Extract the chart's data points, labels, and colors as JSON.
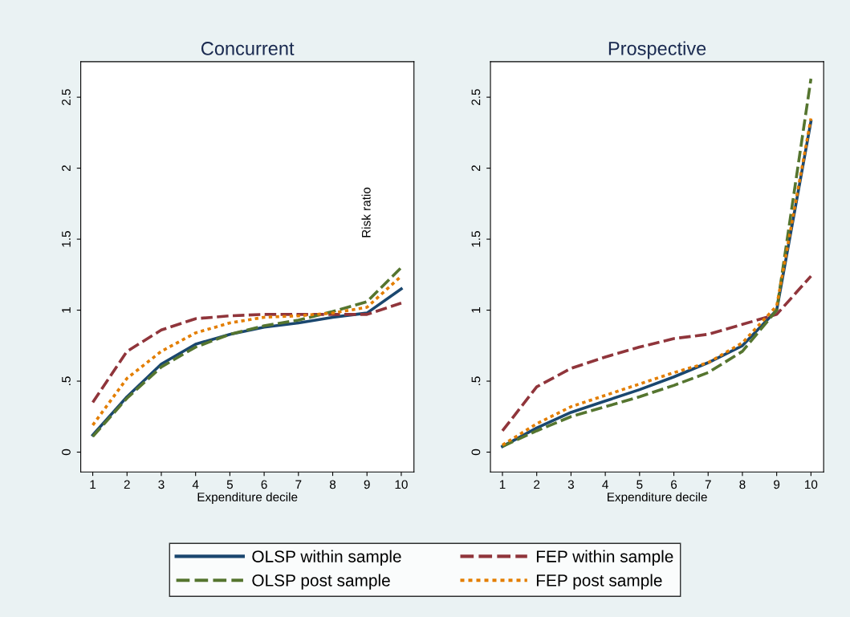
{
  "chart_data": [
    {
      "type": "line",
      "title": "Concurrent",
      "xlabel": "Expenditure decile",
      "x": [
        1,
        2,
        3,
        4,
        5,
        6,
        7,
        8,
        9,
        10
      ],
      "xlim": [
        0.65,
        10.37
      ],
      "xticks": [
        1,
        2,
        3,
        4,
        5,
        6,
        7,
        8,
        9,
        10
      ],
      "ylim": [
        -0.14,
        2.75
      ],
      "yticks": [
        0,
        {
          "value": 0.5,
          "label": ".5"
        },
        1,
        1.5,
        2,
        2.5
      ],
      "grid": false,
      "legend": "bottom",
      "marker": "none",
      "annotations": [
        "Risk ratio"
      ],
      "series": [
        {
          "name": "OLSP within sample",
          "color": "#1a476f",
          "line_style": "solid",
          "values": [
            0.12,
            0.39,
            0.62,
            0.76,
            0.83,
            0.88,
            0.91,
            0.95,
            0.98,
            1.15
          ]
        },
        {
          "name": "FEP within sample",
          "color": "#90353b",
          "line_style": "dashed",
          "values": [
            0.35,
            0.71,
            0.86,
            0.94,
            0.96,
            0.97,
            0.97,
            0.97,
            0.97,
            1.05
          ]
        },
        {
          "name": "OLSP post sample",
          "color": "#55752f",
          "line_style": "dashed",
          "values": [
            0.11,
            0.38,
            0.6,
            0.74,
            0.83,
            0.89,
            0.93,
            0.99,
            1.06,
            1.3
          ]
        },
        {
          "name": "FEP post sample",
          "color": "#e37e00",
          "line_style": "dotted",
          "values": [
            0.19,
            0.52,
            0.71,
            0.84,
            0.91,
            0.95,
            0.96,
            0.98,
            1.02,
            1.24
          ]
        }
      ]
    },
    {
      "type": "line",
      "title": "Prospective",
      "xlabel": "Expenditure decile",
      "x": [
        1,
        2,
        3,
        4,
        5,
        6,
        7,
        8,
        9,
        10
      ],
      "xlim": [
        0.65,
        10.37
      ],
      "xticks": [
        1,
        2,
        3,
        4,
        5,
        6,
        7,
        8,
        9,
        10
      ],
      "ylim": [
        -0.14,
        2.75
      ],
      "yticks": [
        0,
        {
          "value": 0.5,
          "label": ".5"
        },
        1,
        1.5,
        2,
        2.5
      ],
      "grid": false,
      "marker": "none",
      "series": [
        {
          "color": "#1a476f",
          "line_style": "solid",
          "values": [
            0.04,
            0.17,
            0.28,
            0.36,
            0.44,
            0.53,
            0.63,
            0.75,
            1.0,
            2.33
          ]
        },
        {
          "color": "#90353b",
          "line_style": "dashed",
          "values": [
            0.15,
            0.46,
            0.59,
            0.67,
            0.74,
            0.8,
            0.83,
            0.9,
            0.97,
            1.24
          ]
        },
        {
          "color": "#55752f",
          "line_style": "dashed",
          "values": [
            0.04,
            0.15,
            0.25,
            0.32,
            0.39,
            0.47,
            0.56,
            0.71,
            1.0,
            2.63
          ]
        },
        {
          "color": "#e37e00",
          "line_style": "dotted",
          "values": [
            0.05,
            0.2,
            0.32,
            0.4,
            0.48,
            0.56,
            0.63,
            0.77,
            1.03,
            2.35
          ]
        }
      ]
    }
  ]
}
